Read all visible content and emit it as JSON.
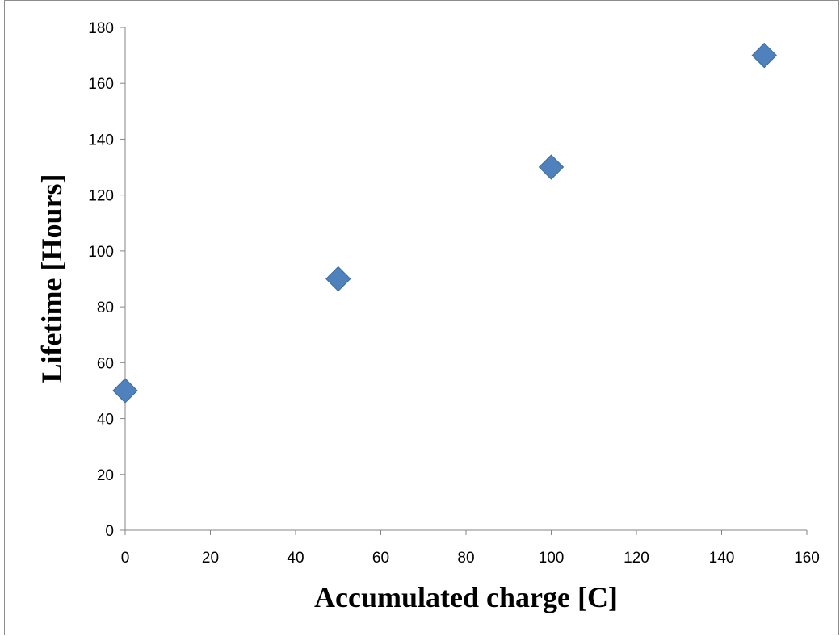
{
  "chart_data": {
    "type": "scatter",
    "title": "",
    "xlabel": "Accumulated charge [C]",
    "ylabel": "Lifetime [Hours]",
    "xlim": [
      0,
      160
    ],
    "ylim": [
      0,
      180
    ],
    "x_ticks": [
      0,
      20,
      40,
      60,
      80,
      100,
      120,
      140,
      160
    ],
    "y_ticks": [
      0,
      20,
      40,
      60,
      80,
      100,
      120,
      140,
      160,
      180
    ],
    "grid": false,
    "legend": "none",
    "marker": "diamond",
    "series": [
      {
        "color": "#4f81bd",
        "points": [
          {
            "x": 0,
            "y": 50
          },
          {
            "x": 50,
            "y": 90
          },
          {
            "x": 100,
            "y": 130
          },
          {
            "x": 150,
            "y": 170
          }
        ]
      }
    ]
  }
}
